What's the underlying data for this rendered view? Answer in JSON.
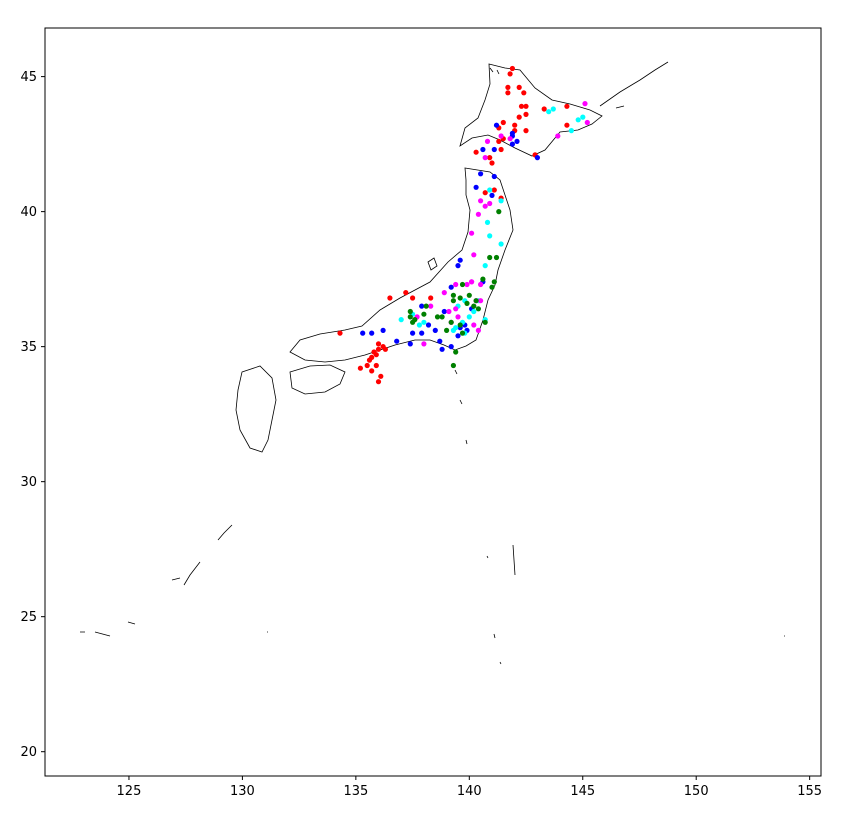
{
  "chart_data": {
    "type": "scatter",
    "title": "",
    "xlabel": "",
    "ylabel": "",
    "xlim": [
      121.3,
      155.5
    ],
    "ylim": [
      19.1,
      46.8
    ],
    "grid": false,
    "legend": "none",
    "x_ticks": [
      "125",
      "130",
      "135",
      "140",
      "145",
      "150",
      "155"
    ],
    "y_ticks": [
      "20",
      "25",
      "30",
      "35",
      "40",
      "45"
    ],
    "series": [
      {
        "color": "#ff0000",
        "points": [
          [
            141.9,
            45.3
          ],
          [
            141.8,
            45.1
          ],
          [
            142.2,
            44.6
          ],
          [
            142.4,
            44.4
          ],
          [
            141.7,
            44.4
          ],
          [
            141.7,
            44.6
          ],
          [
            142.3,
            43.9
          ],
          [
            142.5,
            43.9
          ],
          [
            142.5,
            43.6
          ],
          [
            142.2,
            43.5
          ],
          [
            141.5,
            43.3
          ],
          [
            142.0,
            43.2
          ],
          [
            141.3,
            43.1
          ],
          [
            142.5,
            43.0
          ],
          [
            142.0,
            43.0
          ],
          [
            141.5,
            42.7
          ],
          [
            141.3,
            42.6
          ],
          [
            141.4,
            42.3
          ],
          [
            142.9,
            42.1
          ],
          [
            144.3,
            43.9
          ],
          [
            143.3,
            43.8
          ],
          [
            144.3,
            43.2
          ],
          [
            140.3,
            42.2
          ],
          [
            140.9,
            42.0
          ],
          [
            141.0,
            41.8
          ],
          [
            140.7,
            40.7
          ],
          [
            141.1,
            40.8
          ],
          [
            141.4,
            40.5
          ],
          [
            136.5,
            36.8
          ],
          [
            137.2,
            37.0
          ],
          [
            137.5,
            36.8
          ],
          [
            138.3,
            36.8
          ],
          [
            134.3,
            35.5
          ],
          [
            135.2,
            34.2
          ],
          [
            135.5,
            34.3
          ],
          [
            135.7,
            34.6
          ],
          [
            135.8,
            34.8
          ],
          [
            136.0,
            34.9
          ],
          [
            136.0,
            35.1
          ],
          [
            136.2,
            35.0
          ],
          [
            136.3,
            34.9
          ],
          [
            135.6,
            34.5
          ],
          [
            135.9,
            34.3
          ],
          [
            135.7,
            34.1
          ],
          [
            136.1,
            33.9
          ],
          [
            136.0,
            33.7
          ],
          [
            135.9,
            34.7
          ]
        ]
      },
      {
        "color": "#0000ff",
        "points": [
          [
            141.2,
            43.2
          ],
          [
            141.9,
            42.9
          ],
          [
            142.1,
            42.6
          ],
          [
            141.9,
            42.5
          ],
          [
            140.6,
            42.3
          ],
          [
            141.1,
            42.3
          ],
          [
            143.0,
            42.0
          ],
          [
            141.9,
            42.8
          ],
          [
            140.5,
            41.4
          ],
          [
            141.1,
            41.3
          ],
          [
            141.0,
            40.6
          ],
          [
            140.3,
            40.9
          ],
          [
            139.6,
            38.2
          ],
          [
            139.5,
            38.0
          ],
          [
            135.3,
            35.5
          ],
          [
            136.2,
            35.6
          ],
          [
            135.7,
            35.5
          ],
          [
            136.8,
            35.2
          ],
          [
            137.4,
            35.1
          ],
          [
            137.5,
            35.5
          ],
          [
            137.9,
            35.5
          ],
          [
            138.5,
            35.6
          ],
          [
            138.7,
            35.2
          ],
          [
            138.8,
            34.9
          ],
          [
            139.2,
            35.0
          ],
          [
            139.8,
            35.8
          ],
          [
            139.9,
            35.6
          ],
          [
            139.6,
            35.7
          ],
          [
            138.2,
            35.8
          ],
          [
            139.2,
            37.2
          ],
          [
            140.6,
            37.4
          ],
          [
            140.1,
            36.4
          ],
          [
            139.5,
            35.4
          ],
          [
            138.9,
            36.3
          ],
          [
            137.9,
            36.5
          ]
        ]
      },
      {
        "color": "#00ffff",
        "points": [
          [
            143.5,
            43.7
          ],
          [
            143.7,
            43.8
          ],
          [
            144.8,
            43.4
          ],
          [
            145.0,
            43.5
          ],
          [
            144.5,
            43.0
          ],
          [
            140.9,
            40.8
          ],
          [
            141.4,
            40.4
          ],
          [
            140.8,
            39.6
          ],
          [
            140.9,
            39.1
          ],
          [
            141.4,
            38.8
          ],
          [
            140.7,
            38.0
          ],
          [
            140.7,
            36.0
          ],
          [
            140.2,
            36.3
          ],
          [
            139.7,
            35.9
          ],
          [
            139.8,
            35.5
          ],
          [
            137.0,
            36.0
          ],
          [
            137.5,
            36.2
          ],
          [
            137.8,
            35.8
          ],
          [
            138.0,
            35.9
          ],
          [
            139.3,
            35.6
          ],
          [
            139.4,
            35.7
          ],
          [
            140.0,
            36.1
          ],
          [
            140.4,
            36.7
          ],
          [
            139.8,
            36.7
          ],
          [
            139.5,
            36.5
          ]
        ]
      },
      {
        "color": "#ff00ff",
        "points": [
          [
            145.1,
            44.0
          ],
          [
            145.2,
            43.3
          ],
          [
            143.9,
            42.8
          ],
          [
            141.4,
            42.8
          ],
          [
            141.8,
            42.7
          ],
          [
            140.8,
            42.6
          ],
          [
            140.7,
            42.0
          ],
          [
            140.5,
            40.4
          ],
          [
            140.4,
            39.9
          ],
          [
            140.7,
            40.2
          ],
          [
            140.9,
            40.3
          ],
          [
            140.1,
            39.2
          ],
          [
            140.2,
            38.4
          ],
          [
            140.1,
            37.4
          ],
          [
            140.5,
            37.3
          ],
          [
            139.9,
            37.3
          ],
          [
            139.4,
            37.3
          ],
          [
            138.9,
            37.0
          ],
          [
            138.3,
            36.5
          ],
          [
            139.1,
            36.3
          ],
          [
            139.2,
            35.9
          ],
          [
            139.5,
            36.1
          ],
          [
            140.2,
            35.8
          ],
          [
            140.4,
            35.6
          ],
          [
            138.0,
            35.1
          ],
          [
            140.1,
            37.4
          ],
          [
            140.3,
            36.7
          ],
          [
            140.5,
            36.7
          ],
          [
            137.7,
            36.1
          ],
          [
            139.4,
            36.4
          ]
        ]
      },
      {
        "color": "#008000",
        "points": [
          [
            141.3,
            40.0
          ],
          [
            140.9,
            38.3
          ],
          [
            141.2,
            38.3
          ],
          [
            141.1,
            37.4
          ],
          [
            141.0,
            37.2
          ],
          [
            140.6,
            37.5
          ],
          [
            140.3,
            36.7
          ],
          [
            140.2,
            36.5
          ],
          [
            140.0,
            36.9
          ],
          [
            139.7,
            37.3
          ],
          [
            139.3,
            36.9
          ],
          [
            139.3,
            36.7
          ],
          [
            139.9,
            36.6
          ],
          [
            139.6,
            36.8
          ],
          [
            138.0,
            36.2
          ],
          [
            137.4,
            36.3
          ],
          [
            137.4,
            36.1
          ],
          [
            137.5,
            35.9
          ],
          [
            137.6,
            36.0
          ],
          [
            138.1,
            36.5
          ],
          [
            138.6,
            36.1
          ],
          [
            139.2,
            35.9
          ],
          [
            139.6,
            35.8
          ],
          [
            139.7,
            35.5
          ],
          [
            139.4,
            34.8
          ],
          [
            139.3,
            34.3
          ],
          [
            140.7,
            35.9
          ],
          [
            140.4,
            36.4
          ],
          [
            139.0,
            35.6
          ],
          [
            138.8,
            36.1
          ]
        ]
      }
    ]
  }
}
